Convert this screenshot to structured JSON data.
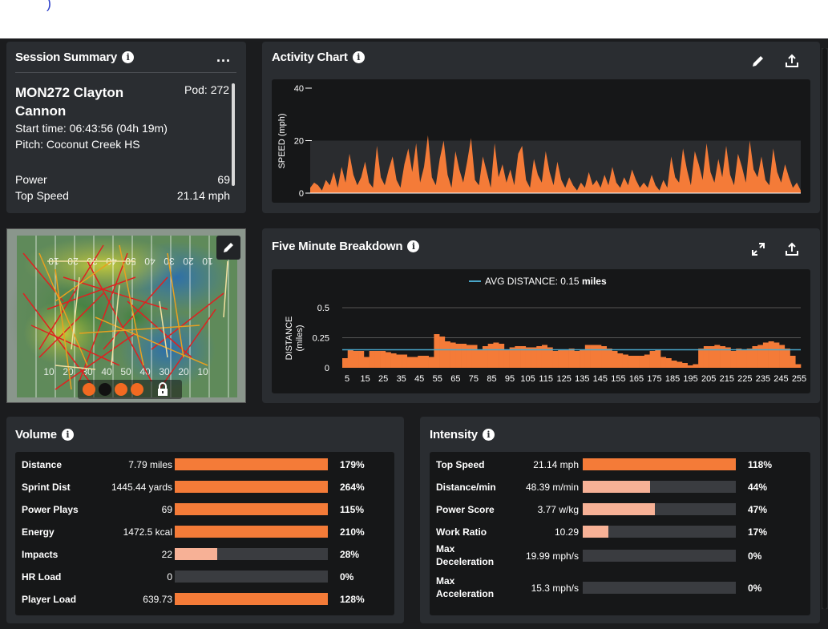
{
  "top_glyph": ")",
  "session_summary": {
    "title": "Session Summary",
    "menu": "...",
    "player_name": "MON272 Clayton Cannon",
    "pod": "Pod: 272",
    "start_time": "Start time: 06:43:56 (04h 19m)",
    "pitch": "Pitch: Coconut Creek HS",
    "stats": [
      {
        "label": "Power",
        "value": "69"
      },
      {
        "label": "Top Speed",
        "value": "21.14 mph"
      }
    ]
  },
  "heatmap": {
    "yard_labels_top": [
      "10",
      "20",
      "30",
      "40",
      "50",
      "40",
      "30",
      "20",
      "10"
    ],
    "yard_labels_bottom": [
      "10",
      "20",
      "30",
      "40",
      "50",
      "40",
      "30",
      "20",
      "10"
    ],
    "dots": [
      {
        "color": "#f26a21"
      },
      {
        "color": "#111111"
      },
      {
        "color": "#f26a21"
      },
      {
        "color": "#f26a21"
      }
    ]
  },
  "activity_chart": {
    "title": "Activity Chart",
    "ylabel": "SPEED (mph)",
    "chart_data": {
      "type": "area",
      "title": "",
      "xlabel": "",
      "ylabel": "SPEED (mph)",
      "ylim": [
        0,
        40
      ],
      "yticks": [
        0,
        20,
        40
      ],
      "grid": true,
      "color": "#f47b38",
      "values": [
        2,
        4,
        3,
        1,
        5,
        3,
        8,
        2,
        10,
        4,
        15,
        7,
        3,
        6,
        12,
        4,
        2,
        18,
        6,
        3,
        9,
        14,
        5,
        2,
        11,
        17,
        8,
        19,
        4,
        10,
        22,
        6,
        3,
        13,
        20,
        7,
        2,
        16,
        9,
        4,
        12,
        21,
        5,
        3,
        14,
        8,
        2,
        19,
        6,
        11,
        4,
        9,
        3,
        15,
        18,
        5,
        2,
        13,
        7,
        4,
        16,
        8,
        3,
        12,
        5,
        2,
        6,
        3,
        1,
        4,
        2,
        8,
        3,
        5,
        2,
        7,
        3,
        10,
        4,
        2,
        6,
        3,
        9,
        5,
        2,
        4,
        2,
        7,
        3,
        1,
        5,
        2,
        14,
        6,
        4,
        17,
        9,
        3,
        16,
        11,
        5,
        19,
        8,
        4,
        13,
        6,
        18,
        7,
        3,
        15,
        10,
        4,
        20,
        9,
        6,
        14,
        5,
        3,
        17,
        8,
        4,
        11,
        6,
        2,
        4,
        1
      ]
    }
  },
  "five_minute": {
    "title": "Five Minute Breakdown",
    "legend": "AVG DISTANCE:",
    "legend_value": "0.15",
    "legend_unit": "miles",
    "ylabel_line1": "DISTANCE",
    "ylabel_line2": "(miles)",
    "chart_data": {
      "type": "bar",
      "title": "",
      "xlabel": "",
      "ylabel": "DISTANCE (miles)",
      "ylim": [
        0,
        0.5
      ],
      "yticks": [
        "0",
        "0.25",
        "0.5"
      ],
      "avg_line": 0.15,
      "color": "#f47b38",
      "avg_color": "#49a6c8",
      "x_tick_labels": [
        "5",
        "15",
        "25",
        "35",
        "45",
        "55",
        "65",
        "75",
        "85",
        "95",
        "105",
        "115",
        "125",
        "135",
        "145",
        "155",
        "165",
        "175",
        "185",
        "195",
        "205",
        "215",
        "225",
        "235",
        "245",
        "255"
      ],
      "values": [
        0.08,
        0.15,
        0.14,
        0.14,
        0.09,
        0.14,
        0.14,
        0.14,
        0.13,
        0.12,
        0.11,
        0.11,
        0.09,
        0.09,
        0.1,
        0.1,
        0.09,
        0.28,
        0.26,
        0.22,
        0.21,
        0.2,
        0.2,
        0.19,
        0.19,
        0.15,
        0.18,
        0.2,
        0.21,
        0.2,
        0.15,
        0.17,
        0.18,
        0.18,
        0.17,
        0.17,
        0.18,
        0.19,
        0.17,
        0.14,
        0.15,
        0.15,
        0.16,
        0.14,
        0.15,
        0.19,
        0.19,
        0.19,
        0.18,
        0.16,
        0.14,
        0.12,
        0.11,
        0.1,
        0.1,
        0.1,
        0.11,
        0.14,
        0.15,
        0.09,
        0.08,
        0.06,
        0.05,
        0.04,
        0.02,
        0.03,
        0.16,
        0.18,
        0.18,
        0.19,
        0.18,
        0.17,
        0.14,
        0.16,
        0.15,
        0.16,
        0.18,
        0.19,
        0.21,
        0.22,
        0.21,
        0.19,
        0.16,
        0.1,
        0.03
      ]
    }
  },
  "volume": {
    "title": "Volume",
    "rows": [
      {
        "label": "Distance",
        "value": "7.79 miles",
        "pct": "179%",
        "fraction": 1.0,
        "color": "#f47b38"
      },
      {
        "label": "Sprint Dist",
        "value": "1445.44 yards",
        "pct": "264%",
        "fraction": 1.0,
        "color": "#f47b38"
      },
      {
        "label": "Power Plays",
        "value": "69",
        "pct": "115%",
        "fraction": 1.0,
        "color": "#f47b38"
      },
      {
        "label": "Energy",
        "value": "1472.5 kcal",
        "pct": "210%",
        "fraction": 1.0,
        "color": "#f47b38"
      },
      {
        "label": "Impacts",
        "value": "22",
        "pct": "28%",
        "fraction": 0.28,
        "color": "#f7b196"
      },
      {
        "label": "HR Load",
        "value": "0",
        "pct": "0%",
        "fraction": 0,
        "color": "#f47b38"
      },
      {
        "label": "Player Load",
        "value": "639.73",
        "pct": "128%",
        "fraction": 1.0,
        "color": "#f47b38"
      }
    ]
  },
  "intensity": {
    "title": "Intensity",
    "rows": [
      {
        "label": "Top Speed",
        "label2": "",
        "value": "21.14 mph",
        "pct": "118%",
        "fraction": 1.0,
        "color": "#f47b38"
      },
      {
        "label": "Distance/min",
        "label2": "",
        "value": "48.39 m/min",
        "pct": "44%",
        "fraction": 0.44,
        "color": "#f7b196"
      },
      {
        "label": "Power Score",
        "label2": "",
        "value": "3.77 w/kg",
        "pct": "47%",
        "fraction": 0.47,
        "color": "#f7b196"
      },
      {
        "label": "Work Ratio",
        "label2": "",
        "value": "10.29",
        "pct": "17%",
        "fraction": 0.17,
        "color": "#f7b196"
      },
      {
        "label": "Max",
        "label2": "Deceleration",
        "value": "19.99 mph/s",
        "pct": "0%",
        "fraction": 0,
        "color": "#f47b38"
      },
      {
        "label": "Max",
        "label2": "Acceleration",
        "value": "15.3 mph/s",
        "pct": "0%",
        "fraction": 0,
        "color": "#f47b38"
      }
    ]
  },
  "icons": {
    "info": "i",
    "edit": "pencil-icon",
    "export": "upload-icon",
    "expand": "expand-icon",
    "lock": "lock-icon"
  }
}
